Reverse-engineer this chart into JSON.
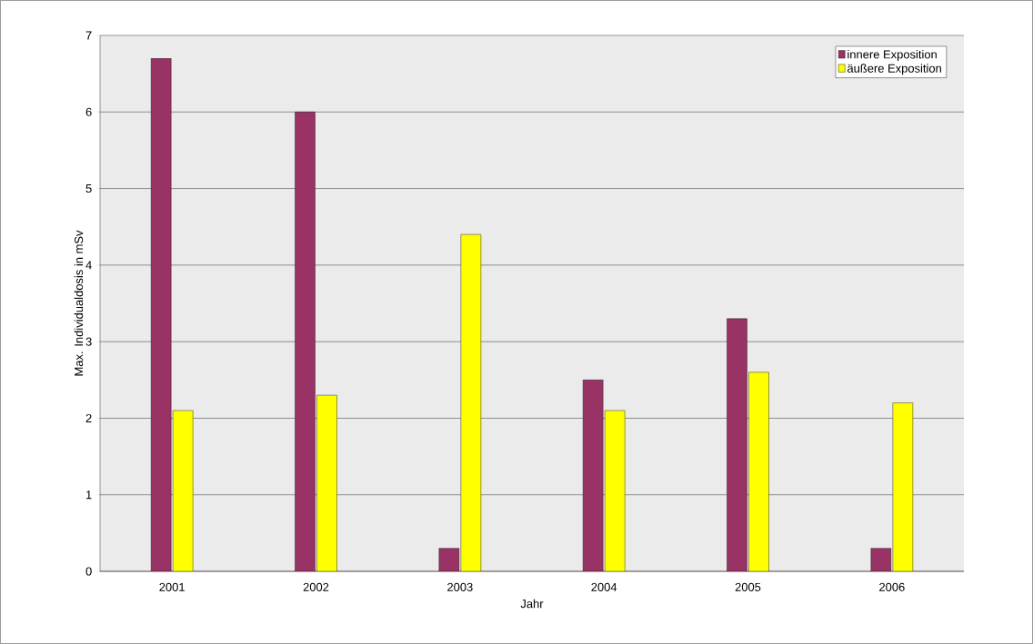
{
  "chart_data": {
    "type": "bar",
    "xlabel": "Jahr",
    "ylabel": "Max. Individualdosis in mSv",
    "categories": [
      "2001",
      "2002",
      "2003",
      "2004",
      "2005",
      "2006"
    ],
    "series": [
      {
        "name": "innere Exposition",
        "color": "#993366",
        "values": [
          6.7,
          6.0,
          0.3,
          2.5,
          3.3,
          0.3
        ]
      },
      {
        "name": "äußere Exposition",
        "color": "#ffff00",
        "values": [
          2.1,
          2.3,
          4.4,
          2.1,
          2.6,
          2.2
        ]
      }
    ],
    "ylim": [
      0,
      7
    ],
    "yticks": [
      0,
      1,
      2,
      3,
      4,
      5,
      6,
      7
    ],
    "grid": "y",
    "legend": "top right"
  }
}
